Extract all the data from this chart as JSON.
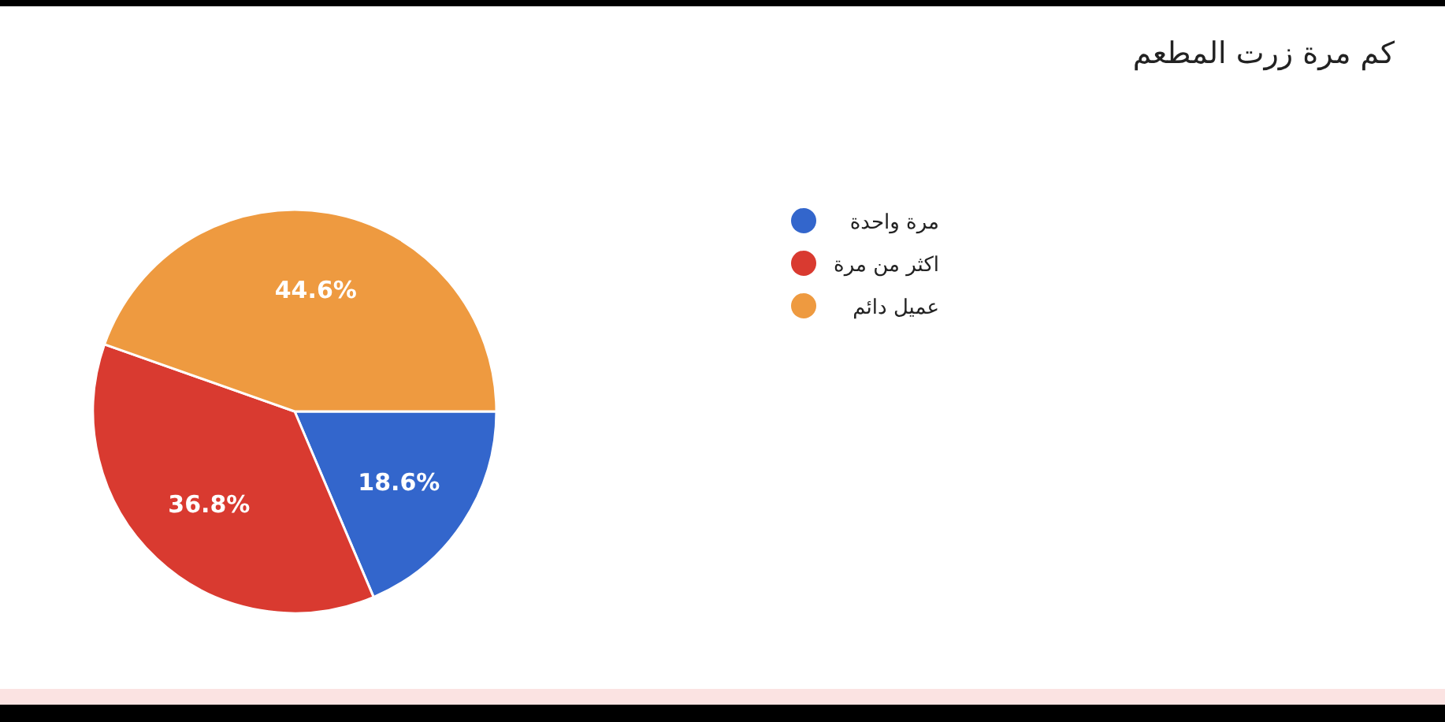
{
  "chart_data": {
    "type": "pie",
    "title": "كم مرة زرت المطعم",
    "categories": [
      "مرة واحدة",
      "اكثر من مرة",
      "عميل دائم"
    ],
    "values": [
      18.6,
      36.8,
      44.6
    ],
    "value_labels": [
      "18.6%",
      "36.8%",
      "44.6%"
    ],
    "colors": [
      "#3366cc",
      "#d93a30",
      "#ee9a40"
    ],
    "legend": "right"
  }
}
